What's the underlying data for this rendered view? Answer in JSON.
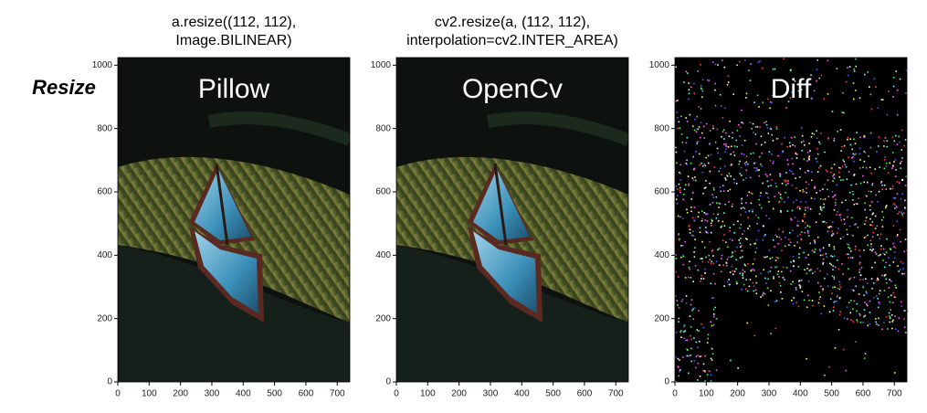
{
  "slide_label": "Resize",
  "chart_data": [
    {
      "type": "image",
      "title": [
        "a.resize((112, 112),",
        "Image.BILINEAR)"
      ],
      "annotation": "Pillow",
      "xlim": [
        0,
        740
      ],
      "ylim": [
        1024,
        0
      ],
      "xticks": [
        0,
        100,
        200,
        300,
        400,
        500,
        600,
        700
      ],
      "yticks": [
        0,
        200,
        400,
        600,
        800,
        1000
      ]
    },
    {
      "type": "image",
      "title": [
        "cv2.resize(a, (112, 112),",
        "interpolation=cv2.INTER_AREA)"
      ],
      "annotation": "OpenCv",
      "xlim": [
        0,
        740
      ],
      "ylim": [
        1024,
        0
      ],
      "xticks": [
        0,
        100,
        200,
        300,
        400,
        500,
        600,
        700
      ],
      "yticks": [
        0,
        200,
        400,
        600,
        800,
        1000
      ]
    },
    {
      "type": "image",
      "annotation": "Diff",
      "xlim": [
        0,
        740
      ],
      "ylim": [
        1024,
        0
      ],
      "xticks": [
        0,
        100,
        200,
        300,
        400,
        500,
        600,
        700
      ],
      "yticks": [
        0,
        200,
        400,
        600,
        800,
        1000
      ]
    }
  ]
}
